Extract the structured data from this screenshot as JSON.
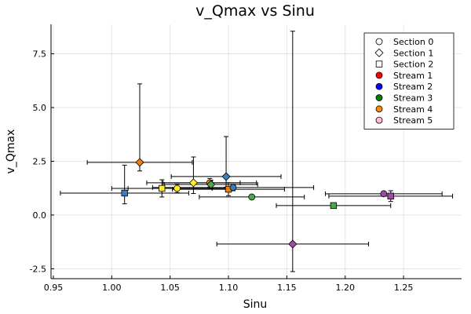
{
  "chart_data": {
    "type": "errorbar-scatter",
    "title": "v_Qmax vs Sinu",
    "x_label": "Sinu",
    "y_label": "v_Qmax",
    "xlim": [
      0.948,
      1.2997
    ],
    "ylim": [
      -2.96,
      8.87
    ],
    "xticks": [
      0.95,
      {
        "value": 1,
        "label": "1.00"
      },
      1.05,
      {
        "value": 1.1,
        "label": "1.10"
      },
      1.15,
      {
        "value": 1.2,
        "label": "1.20"
      },
      1.25
    ],
    "yticks": [
      -2.5,
      {
        "value": 0,
        "label": "0.0"
      },
      2.5,
      {
        "value": 5,
        "label": "5.0"
      },
      7.5
    ],
    "grid": true,
    "legend_position": "top-right",
    "legend": [
      {
        "name": "Section 0",
        "marker": "circle",
        "color": "#ffffff"
      },
      {
        "name": "Section 1",
        "marker": "diamond",
        "color": "#ffffff"
      },
      {
        "name": "Section 2",
        "marker": "square",
        "color": "#ffffff"
      },
      {
        "name": "Stream 1",
        "marker": "circle",
        "color": "#ff0000"
      },
      {
        "name": "Stream 2",
        "marker": "circle",
        "color": "#0000ff"
      },
      {
        "name": "Stream 3",
        "marker": "circle",
        "color": "#008000"
      },
      {
        "name": "Stream 4",
        "marker": "circle",
        "color": "#ff8c00"
      },
      {
        "name": "Stream 5",
        "marker": "circle",
        "color": "#ffc0cb"
      }
    ],
    "points": [
      {
        "x": 1.011,
        "y": 1.02,
        "xerr": 0.055,
        "yerr_low": 0.5,
        "yerr_high": 1.3,
        "marker": "square",
        "color": "#3a7dbf"
      },
      {
        "x": 1.024,
        "y": 2.45,
        "xerr": 0.045,
        "yerr_low": 0.4,
        "yerr_high": 3.65,
        "marker": "diamond",
        "color": "#f07f0e"
      },
      {
        "x": 1.043,
        "y": 1.24,
        "xerr": 0.043,
        "yerr_low": 0.4,
        "yerr_high": 0.4,
        "marker": "square",
        "color": "#ffee22"
      },
      {
        "x": 1.056,
        "y": 1.24,
        "xerr": 0.042,
        "yerr_low": 0.2,
        "yerr_high": 0.2,
        "marker": "circle",
        "color": "#ffee22"
      },
      {
        "x": 1.07,
        "y": 1.5,
        "xerr": 0.04,
        "yerr_low": 0.5,
        "yerr_high": 1.2,
        "marker": "diamond",
        "color": "#ffee22"
      },
      {
        "x": 1.084,
        "y": 1.5,
        "xerr": 0.04,
        "yerr_low": 0.2,
        "yerr_high": 0.2,
        "marker": "circle",
        "color": "#f07f0e"
      },
      {
        "x": 1.085,
        "y": 1.42,
        "xerr": 0.04,
        "yerr_low": 0.2,
        "yerr_high": 0.2,
        "marker": "diamond",
        "color": "#4aa84a"
      },
      {
        "x": 1.098,
        "y": 1.79,
        "xerr": 0.047,
        "yerr_low": 0.5,
        "yerr_high": 1.86,
        "marker": "diamond",
        "color": "#3a7dbf"
      },
      {
        "x": 1.1,
        "y": 1.2,
        "xerr": 0.048,
        "yerr_low": 0.3,
        "yerr_high": 0.3,
        "marker": "square",
        "color": "#f07f0e"
      },
      {
        "x": 1.104,
        "y": 1.28,
        "xerr": 0.069,
        "yerr_low": 0.15,
        "yerr_high": 0.15,
        "marker": "circle",
        "color": "#3a7dbf"
      },
      {
        "x": 1.12,
        "y": 0.84,
        "xerr": 0.045,
        "yerr_low": 0.1,
        "yerr_high": 0.1,
        "marker": "circle",
        "color": "#4aa84a"
      },
      {
        "x": 1.155,
        "y": -1.35,
        "xerr": 0.065,
        "yerr_low": 1.28,
        "yerr_high": 9.9,
        "marker": "diamond",
        "color": "#9a4fa4"
      },
      {
        "x": 1.19,
        "y": 0.44,
        "xerr": 0.049,
        "yerr_low": 0.1,
        "yerr_high": 0.1,
        "marker": "square",
        "color": "#4aa84a"
      },
      {
        "x": 1.233,
        "y": 0.99,
        "xerr": 0.05,
        "yerr_low": 0.1,
        "yerr_high": 0.1,
        "marker": "circle",
        "color": "#9a4fa4"
      },
      {
        "x": 1.239,
        "y": 0.88,
        "xerr": 0.053,
        "yerr_low": 0.25,
        "yerr_high": 0.25,
        "marker": "square",
        "color": "#9a4fa4"
      }
    ]
  }
}
